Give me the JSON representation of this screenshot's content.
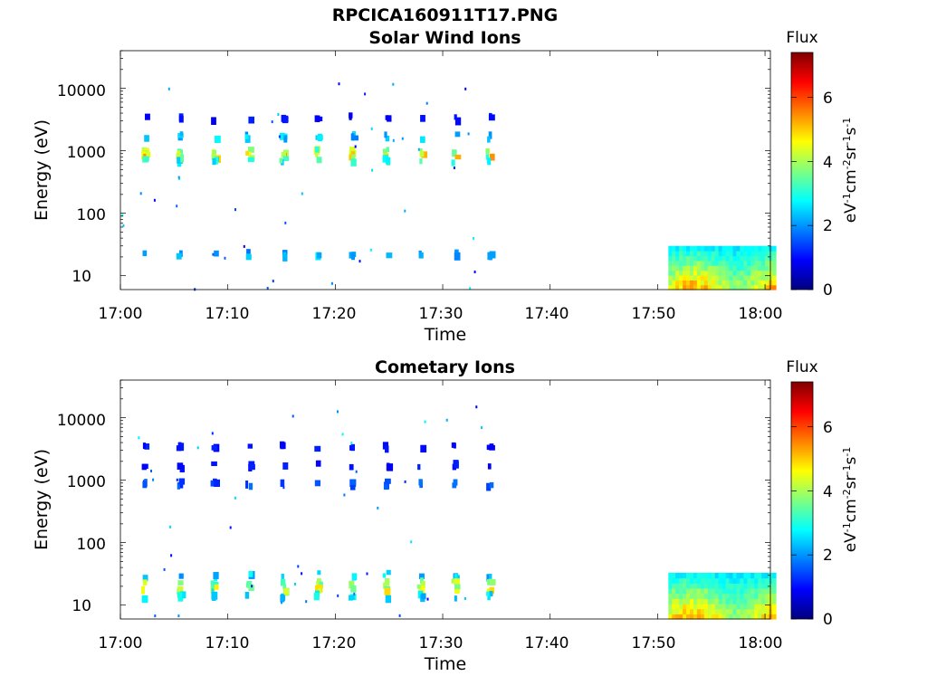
{
  "figure_title": "RPCICA160911T17.PNG",
  "panels": [
    {
      "title": "Solar Wind Ions",
      "ylabel": "Energy (eV)",
      "xlabel": "Time",
      "yticks": [
        "10",
        "100",
        "1000",
        "10000"
      ],
      "xticks": [
        "17:00",
        "17:10",
        "17:20",
        "17:30",
        "17:40",
        "17:50",
        "18:00"
      ]
    },
    {
      "title": "Cometary Ions",
      "ylabel": "Energy (eV)",
      "xlabel": "Time",
      "yticks": [
        "10",
        "100",
        "1000",
        "10000"
      ],
      "xticks": [
        "17:00",
        "17:10",
        "17:20",
        "17:30",
        "17:40",
        "17:50",
        "18:00"
      ]
    }
  ],
  "colorbar": {
    "title": "Flux",
    "label": "eV-1cm-2sr-1s-1",
    "ticks": [
      "0",
      "2",
      "4",
      "6"
    ],
    "range": [
      0,
      7.4
    ],
    "colormap": "jet"
  },
  "chart_data": [
    {
      "type": "heatmap",
      "title": "Solar Wind Ions",
      "xlabel": "Time",
      "ylabel": "Energy (eV)",
      "x_range": [
        "17:00",
        "18:00"
      ],
      "y_range": [
        6,
        40000
      ],
      "y_scale": "log",
      "grid": false,
      "burst_times_min": [
        2.1,
        5.4,
        8.6,
        11.8,
        15.0,
        18.2,
        21.4,
        24.6,
        27.8,
        31.0,
        34.2
      ],
      "bursts": [
        {
          "energy_eV": 3400,
          "flux": 1.0
        },
        {
          "energy_eV": 1700,
          "flux": 2.3
        },
        {
          "energy_eV": 1000,
          "flux": 3.8
        },
        {
          "energy_eV": 850,
          "flux": 4.7
        },
        {
          "energy_eV": 720,
          "flux": 3.0
        },
        {
          "energy_eV": 22,
          "flux": 2.2
        }
      ],
      "end_block": {
        "x_range": [
          "17:51",
          "18:01"
        ],
        "energy_range": [
          6,
          30
        ],
        "flux_range": [
          2.5,
          5.2
        ]
      }
    },
    {
      "type": "heatmap",
      "title": "Cometary Ions",
      "xlabel": "Time",
      "ylabel": "Energy (eV)",
      "x_range": [
        "17:00",
        "18:00"
      ],
      "y_range": [
        6,
        40000
      ],
      "y_scale": "log",
      "grid": false,
      "burst_times_min": [
        2.1,
        5.4,
        8.6,
        11.8,
        15.0,
        18.2,
        21.4,
        24.6,
        27.8,
        31.0,
        34.2
      ],
      "bursts": [
        {
          "energy_eV": 3500,
          "flux": 1.0
        },
        {
          "energy_eV": 1750,
          "flux": 1.0
        },
        {
          "energy_eV": 880,
          "flux": 1.5
        },
        {
          "energy_eV": 30,
          "flux": 2.4
        },
        {
          "energy_eV": 23,
          "flux": 3.7
        },
        {
          "energy_eV": 18,
          "flux": 4.1
        },
        {
          "energy_eV": 14,
          "flux": 2.6
        }
      ],
      "end_block": {
        "x_range": [
          "17:51",
          "18:01"
        ],
        "energy_range": [
          6,
          33
        ],
        "flux_range": [
          2.5,
          5.2
        ]
      }
    }
  ]
}
